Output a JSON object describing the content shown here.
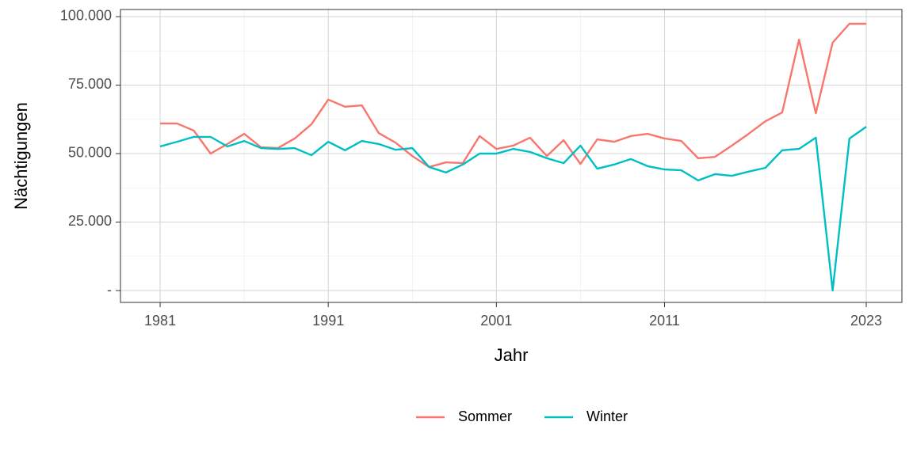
{
  "chart_data": {
    "type": "line",
    "x_label": "Jahr",
    "y_label": "Nächtigungen",
    "x": [
      1981,
      1982,
      1983,
      1984,
      1985,
      1986,
      1987,
      1988,
      1989,
      1990,
      1991,
      1992,
      1993,
      1994,
      1995,
      1996,
      1997,
      1998,
      1999,
      2000,
      2001,
      2002,
      2003,
      2004,
      2005,
      2006,
      2007,
      2008,
      2009,
      2010,
      2011,
      2012,
      2013,
      2014,
      2015,
      2016,
      2017,
      2018,
      2019,
      2020,
      2021,
      2022,
      2023
    ],
    "series": [
      {
        "name": "Sommer",
        "color": "#F8766D",
        "values": [
          61000,
          61000,
          58400,
          50000,
          53500,
          57200,
          52300,
          52000,
          55500,
          60700,
          69700,
          67100,
          67600,
          57500,
          54000,
          49100,
          45100,
          46800,
          46500,
          56400,
          51700,
          52900,
          55800,
          49100,
          54900,
          46200,
          55200,
          54300,
          56400,
          57200,
          55500,
          54600,
          48300,
          48800,
          52900,
          57200,
          61800,
          65000,
          91600,
          64700,
          90500,
          97400,
          97400
        ]
      },
      {
        "name": "Winter",
        "color": "#00BFC4",
        "values": [
          52600,
          54300,
          56100,
          56100,
          52600,
          54600,
          52000,
          51700,
          52000,
          49400,
          54300,
          51200,
          54600,
          53500,
          51400,
          52000,
          45100,
          43100,
          46000,
          50000,
          50000,
          51700,
          50600,
          48300,
          46500,
          52900,
          44500,
          46000,
          48000,
          45400,
          44200,
          43900,
          40200,
          42500,
          41900,
          43400,
          44800,
          51200,
          51700,
          55800,
          0,
          55500,
          59800
        ]
      }
    ],
    "xlim": [
      1978.64,
      2025.12
    ],
    "xticks": [
      1981,
      1991,
      2001,
      2011,
      2023
    ],
    "x_minor_ticks": [
      1986,
      1996,
      2006,
      2017
    ],
    "ylim": [
      -4335,
      102600
    ],
    "yticks": [
      {
        "value": 0,
        "label": "-"
      },
      {
        "value": 25000,
        "label": "25.000"
      },
      {
        "value": 50000,
        "label": "50.000"
      },
      {
        "value": 75000,
        "label": "75.000"
      },
      {
        "value": 100000,
        "label": "100.000"
      }
    ],
    "y_minor_ticks": [
      12500,
      37500,
      62500,
      87500
    ],
    "grid": true,
    "legend": "bottom"
  }
}
